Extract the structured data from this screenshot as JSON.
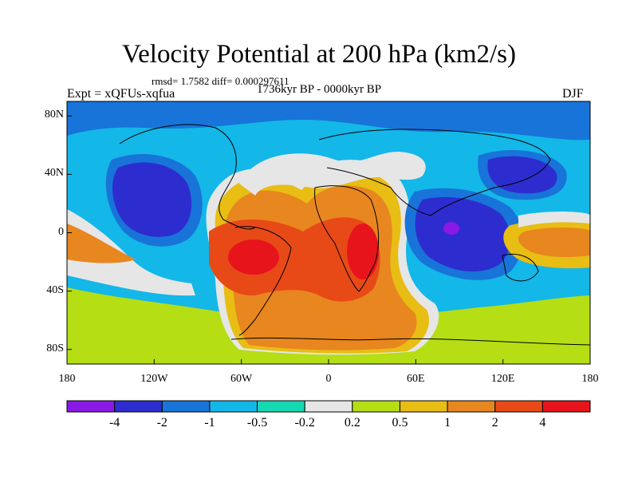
{
  "title": "Velocity Potential at 200 hPa (km2/s)",
  "stats": "rmsd= 1.7582 diff= 0.000297611",
  "experiment": "Expt = xQFUs-xqfua",
  "period": "1736kyr BP - 0000kyr BP",
  "season": "DJF",
  "map_data": {
    "variable": "Velocity potential difference at 200 hPa",
    "units": "km2/s",
    "lon_range": [
      -180,
      180
    ],
    "lat_range": [
      -90,
      90
    ],
    "y_ticks": [
      "80N",
      "40N",
      "0",
      "40S",
      "80S"
    ],
    "x_ticks": [
      "180",
      "120W",
      "60W",
      "0",
      "60E",
      "120E",
      "180"
    ],
    "contour_levels": [
      "-4",
      "-2",
      "-1",
      "-0.5",
      "-0.2",
      "0.2",
      "0.5",
      "1",
      "2",
      "4"
    ],
    "colorbar_colors": [
      "#8a19e6",
      "#2d2dcf",
      "#1874d8",
      "#13b7e8",
      "#14d9b3",
      "#e6e6e6",
      "#b5de14",
      "#e8bd14",
      "#e8861f",
      "#e84a17",
      "#e8141c"
    ]
  }
}
